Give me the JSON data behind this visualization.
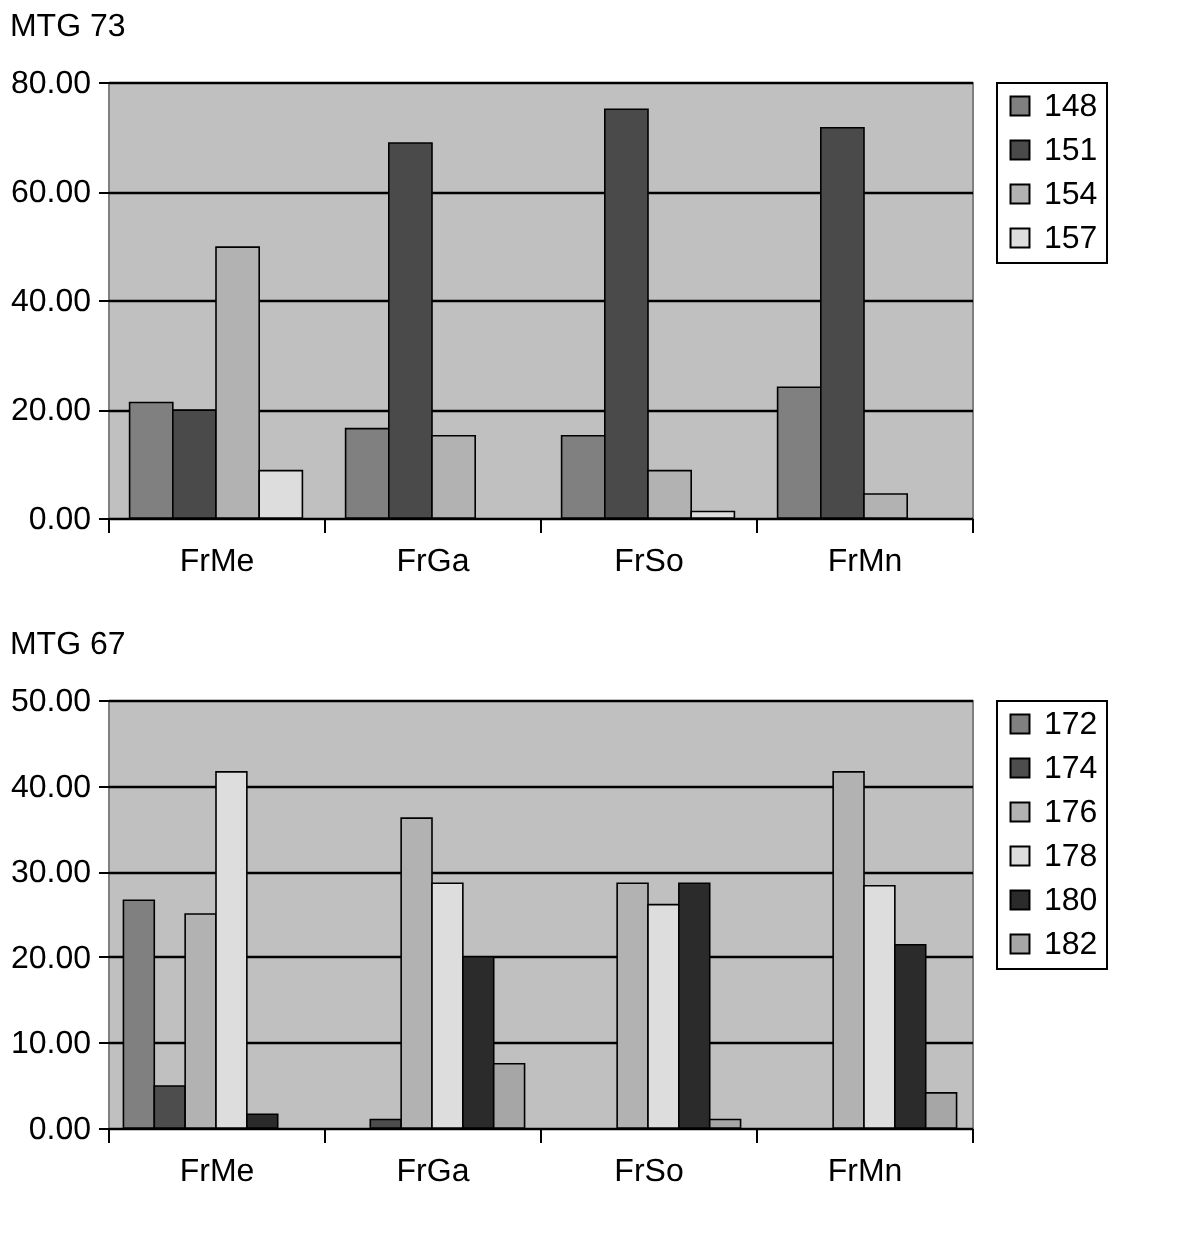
{
  "chart_data": [
    {
      "type": "bar",
      "title": "MTG 73",
      "categories": [
        "FrMe",
        "FrGa",
        "FrSo",
        "FrMn"
      ],
      "ylim": [
        0,
        80
      ],
      "yticks": [
        {
          "value": 0,
          "label": "0.00"
        },
        {
          "value": 20,
          "label": "20.00"
        },
        {
          "value": 40,
          "label": "40.00"
        },
        {
          "value": 60,
          "label": "60.00"
        },
        {
          "value": 80,
          "label": "80.00"
        }
      ],
      "grid": "y",
      "legend": "right",
      "series": [
        {
          "name": "148",
          "color": "#808080",
          "values": [
            21.2,
            16.4,
            15.1,
            24.0
          ]
        },
        {
          "name": "151",
          "color": "#4a4a4a",
          "values": [
            19.8,
            68.8,
            75.0,
            71.6
          ]
        },
        {
          "name": "154",
          "color": "#b2b2b2",
          "values": [
            49.7,
            15.1,
            8.7,
            4.4
          ]
        },
        {
          "name": "157",
          "color": "#dddddd",
          "values": [
            8.7,
            null,
            1.2,
            null
          ]
        }
      ]
    },
    {
      "type": "bar",
      "title": "MTG 67",
      "categories": [
        "FrMe",
        "FrGa",
        "FrSo",
        "FrMn"
      ],
      "ylim": [
        0,
        50
      ],
      "yticks": [
        {
          "value": 0,
          "label": "0.00"
        },
        {
          "value": 10,
          "label": "10.00"
        },
        {
          "value": 20,
          "label": "20.00"
        },
        {
          "value": 30,
          "label": "30.00"
        },
        {
          "value": 40,
          "label": "40.00"
        },
        {
          "value": 50,
          "label": "50.00"
        }
      ],
      "grid": "y",
      "legend": "right",
      "series": [
        {
          "name": "172",
          "color": "#808080",
          "values": [
            26.6,
            null,
            null,
            null
          ]
        },
        {
          "name": "174",
          "color": "#4d4d4d",
          "values": [
            4.9,
            1.0,
            null,
            null
          ]
        },
        {
          "name": "176",
          "color": "#b2b2b2",
          "values": [
            25.0,
            36.2,
            28.6,
            41.6
          ]
        },
        {
          "name": "178",
          "color": "#dddddd",
          "values": [
            41.6,
            28.6,
            26.1,
            28.3
          ]
        },
        {
          "name": "180",
          "color": "#2b2b2b",
          "values": [
            1.6,
            20.0,
            28.6,
            21.4
          ]
        },
        {
          "name": "182",
          "color": "#a6a6a6",
          "values": [
            null,
            7.5,
            1.0,
            4.1
          ]
        }
      ]
    }
  ]
}
